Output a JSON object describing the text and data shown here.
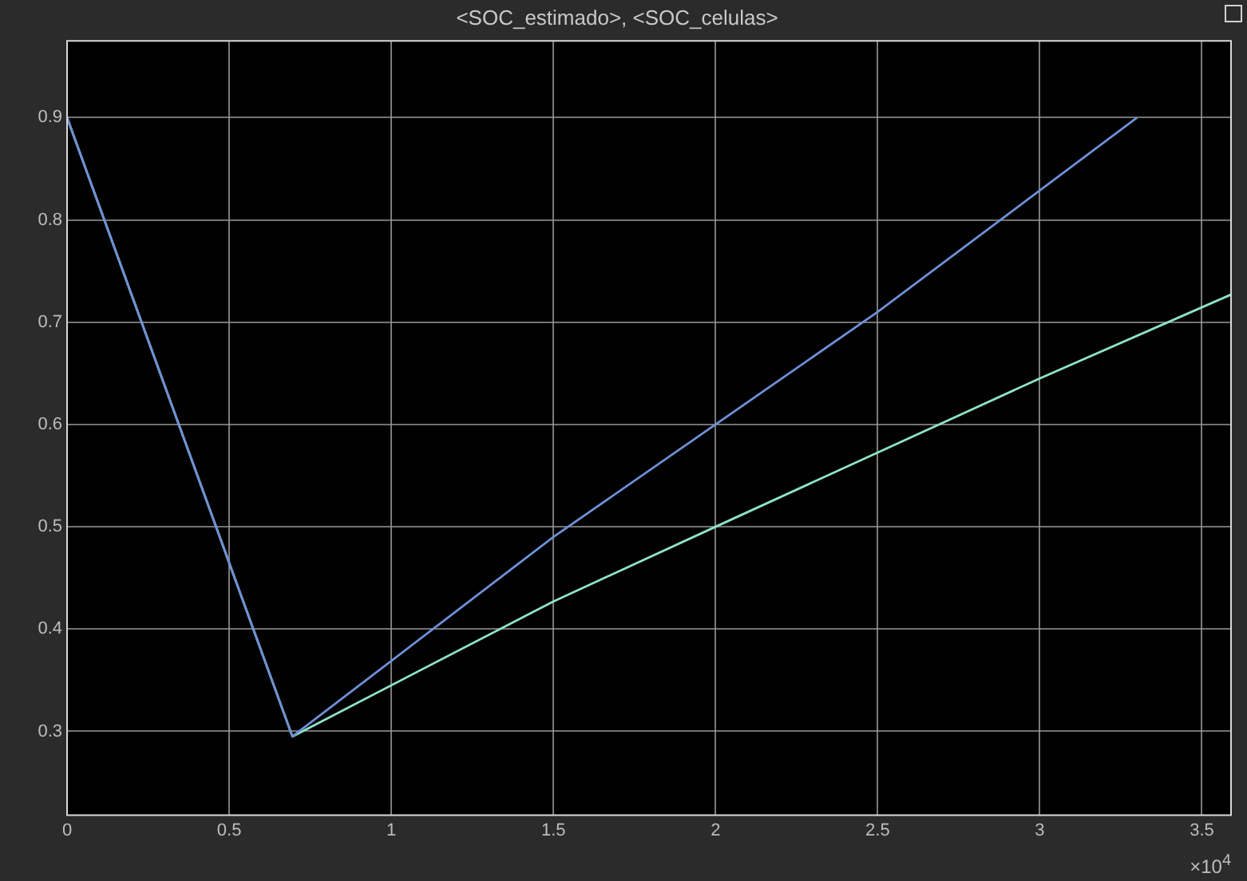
{
  "chart_data": {
    "type": "line",
    "title": "<SOC_estimado>, <SOC_celulas>",
    "series": [
      {
        "color": "#6f8fd6",
        "x": [
          0,
          0.695,
          1.5,
          2.5,
          3.3
        ],
        "values": [
          0.9,
          0.295,
          0.49,
          0.71,
          0.9
        ]
      },
      {
        "color": "#8fe3c8",
        "x": [
          0,
          0.695,
          1.5,
          2,
          3,
          3.59
        ],
        "values": [
          0.9,
          0.295,
          0.427,
          0.5,
          0.645,
          0.727
        ]
      }
    ],
    "xlim": [
      0,
      3.59
    ],
    "xticks": [
      0,
      0.5,
      1,
      1.5,
      2,
      2.5,
      3,
      3.5
    ],
    "ylim": [
      0.218,
      0.975
    ],
    "yticks": [
      0.3,
      0.4,
      0.5,
      0.6,
      0.7,
      0.8,
      0.9
    ],
    "annotations": [
      "×10$^{4}$"
    ],
    "grid": true,
    "legend": false,
    "marker": "none"
  }
}
